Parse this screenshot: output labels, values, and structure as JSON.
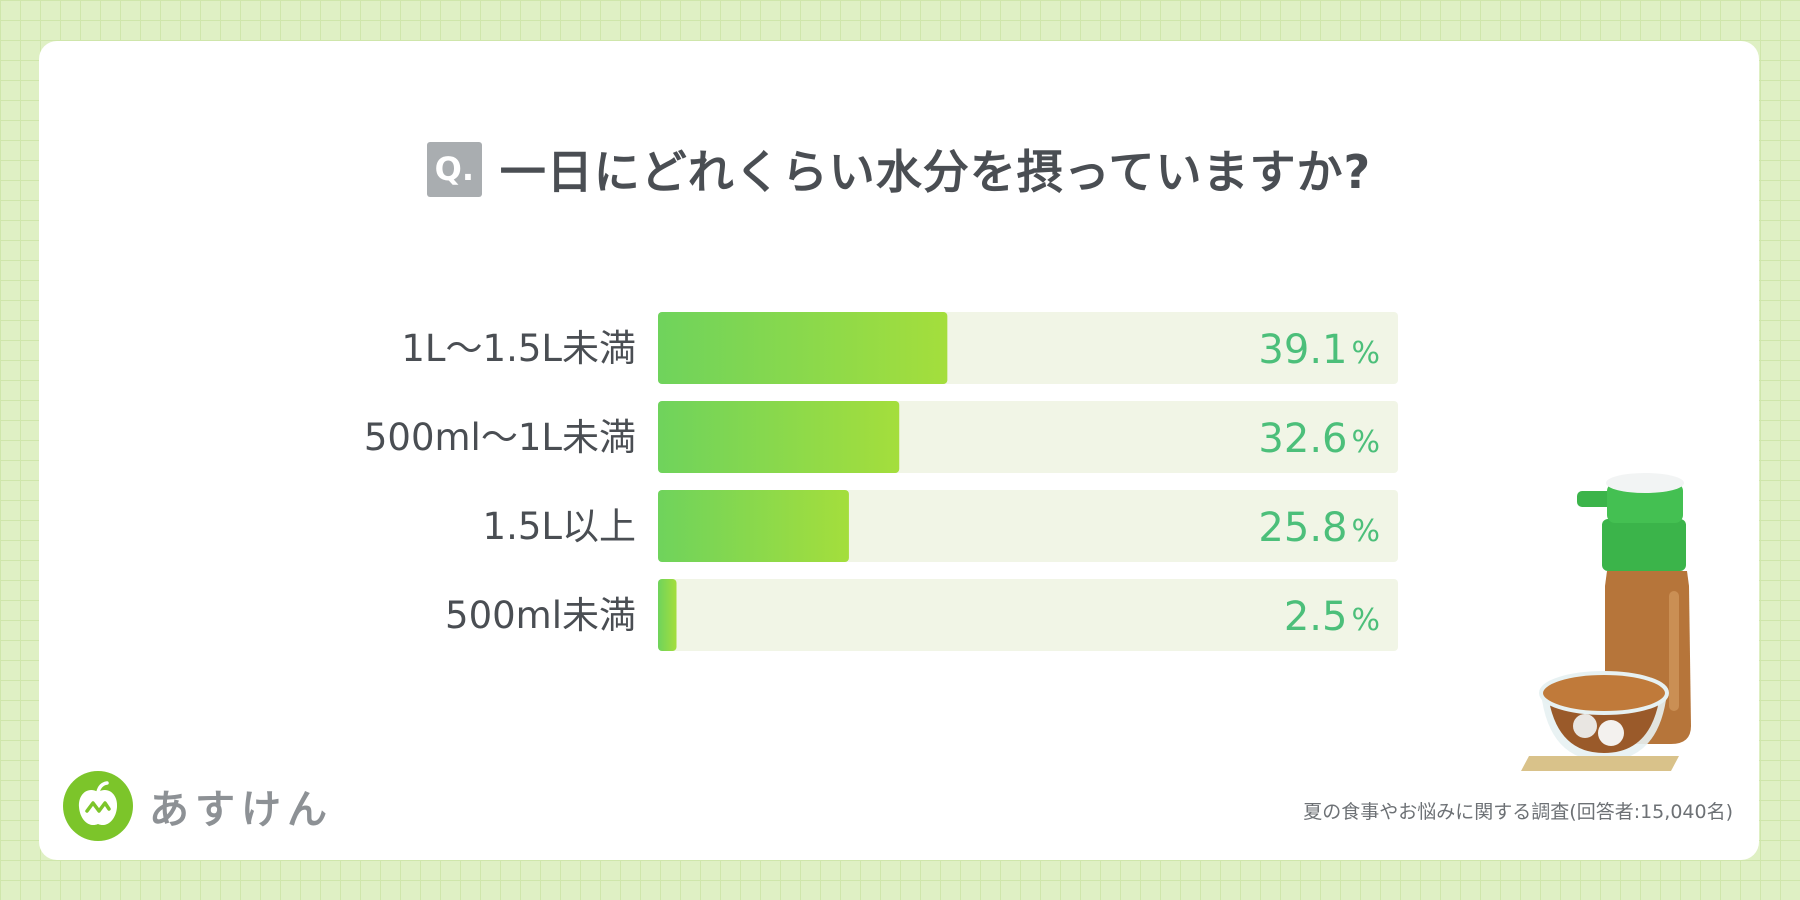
{
  "question": {
    "badge": "Q.",
    "text": "一日にどれくらい水分を摂っていますか?"
  },
  "chart_data": {
    "type": "bar",
    "orientation": "horizontal",
    "categories": [
      "1L〜1.5L未満",
      "500ml〜1L未満",
      "1.5L以上",
      "500ml未満"
    ],
    "values": [
      39.1,
      32.6,
      25.8,
      2.5
    ],
    "value_labels": [
      "39.1",
      "32.6",
      "25.8",
      "2.5"
    ],
    "unit": "%",
    "xlim": [
      0,
      100
    ],
    "colors": {
      "bar_start": "#6fd35c",
      "bar_end": "#a4de3c",
      "track": "#f1f5e6",
      "value_text": "#4cbf7a"
    }
  },
  "logo": {
    "name": "あすけん"
  },
  "footnote": "夏の食事やお悩みに関する調査(回答者:15,040名)"
}
